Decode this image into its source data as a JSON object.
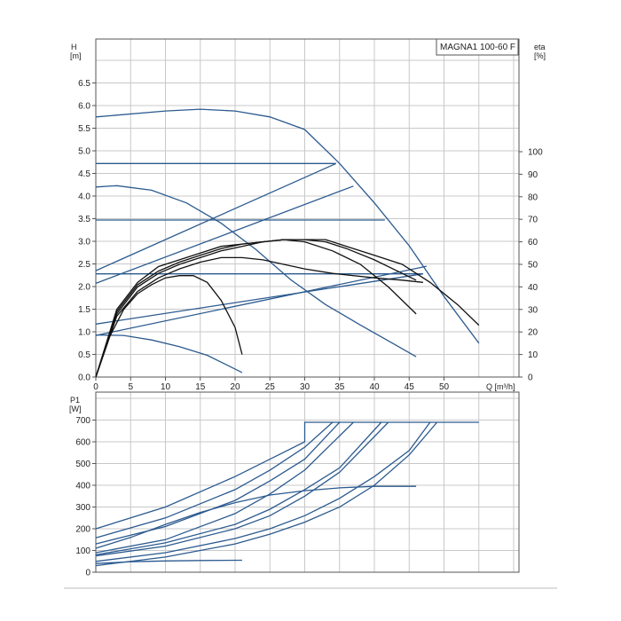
{
  "chart_data": [
    {
      "type": "line",
      "panel": "H / eta vs Q",
      "legend_title": "MAGNA1 100-60 F",
      "left_axis_label": [
        "H",
        "[m]"
      ],
      "right_axis_label": [
        "eta",
        "[%]"
      ],
      "x_axis_label": "Q [m³/h]",
      "xlim": [
        0,
        60
      ],
      "ylim": [
        0,
        6.5
      ],
      "eta_lim": [
        0,
        100
      ],
      "x_ticks": [
        "0",
        "5",
        "10",
        "15",
        "20",
        "25",
        "30",
        "35",
        "40",
        "45",
        "50"
      ],
      "y_ticks": [
        "0.0",
        "0.5",
        "1.0",
        "1.5",
        "2.0",
        "2.5",
        "3.0",
        "3.5",
        "4.0",
        "4.5",
        "5.0",
        "5.5",
        "6.0",
        "6.5"
      ],
      "eta_ticks": [
        "0",
        "10",
        "20",
        "30",
        "40",
        "50",
        "60",
        "70",
        "80",
        "90",
        "100"
      ],
      "grid": true,
      "series": [
        {
          "group": "head",
          "color": "#2b5a8f",
          "points": [
            [
              0,
              5.75
            ],
            [
              10,
              5.88
            ],
            [
              15,
              5.92
            ],
            [
              20,
              5.88
            ],
            [
              25,
              5.75
            ],
            [
              30,
              5.47
            ],
            [
              35,
              4.72
            ],
            [
              40,
              3.85
            ],
            [
              45,
              2.9
            ],
            [
              50,
              1.78
            ],
            [
              55,
              0.75
            ]
          ]
        },
        {
          "group": "head",
          "color": "#2b5a8f",
          "points": [
            [
              0,
              4.72
            ],
            [
              34.5,
              4.72
            ]
          ]
        },
        {
          "group": "head",
          "color": "#2b5a8f",
          "points": [
            [
              0,
              3.47
            ],
            [
              41.5,
              3.47
            ]
          ]
        },
        {
          "group": "head",
          "color": "#2b5a8f",
          "points": [
            [
              0,
              2.28
            ],
            [
              47,
              2.28
            ]
          ]
        },
        {
          "group": "head",
          "color": "#2b5a8f",
          "points": [
            [
              0,
              2.35
            ],
            [
              34.5,
              4.72
            ]
          ]
        },
        {
          "group": "head",
          "color": "#2b5a8f",
          "points": [
            [
              0,
              2.07
            ],
            [
              37,
              4.22
            ]
          ]
        },
        {
          "group": "head",
          "color": "#2b5a8f",
          "points": [
            [
              0,
              1.17
            ],
            [
              47,
              2.28
            ]
          ]
        },
        {
          "group": "head",
          "color": "#2b5a8f",
          "points": [
            [
              0,
              0.92
            ],
            [
              47.5,
              2.45
            ]
          ]
        },
        {
          "group": "head",
          "color": "#2b5a8f",
          "points": [
            [
              0,
              4.2
            ],
            [
              3,
              4.23
            ],
            [
              8,
              4.13
            ],
            [
              13,
              3.85
            ],
            [
              18,
              3.4
            ],
            [
              23,
              2.82
            ],
            [
              28,
              2.15
            ],
            [
              33,
              1.6
            ],
            [
              38,
              1.15
            ],
            [
              42,
              0.8
            ],
            [
              46,
              0.45
            ]
          ]
        },
        {
          "group": "head",
          "color": "#2b5a8f",
          "points": [
            [
              0,
              0.93
            ],
            [
              4,
              0.92
            ],
            [
              8,
              0.82
            ],
            [
              12,
              0.67
            ],
            [
              16,
              0.48
            ],
            [
              21,
              0.1
            ]
          ]
        },
        {
          "group": "eta",
          "color": "#111111",
          "points": [
            [
              0,
              0
            ],
            [
              3,
              30
            ],
            [
              6,
              42
            ],
            [
              9,
              49
            ],
            [
              12,
              52
            ],
            [
              15,
              55
            ],
            [
              18,
              58
            ],
            [
              21,
              59
            ],
            [
              24,
              60
            ],
            [
              27,
              61
            ],
            [
              30,
              61
            ],
            [
              33,
              61
            ],
            [
              36,
              58
            ],
            [
              40,
              54
            ],
            [
              44,
              50
            ],
            [
              48,
              42
            ],
            [
              52,
              32
            ],
            [
              55,
              23
            ]
          ]
        },
        {
          "group": "eta",
          "color": "#111111",
          "points": [
            [
              0,
              0
            ],
            [
              3,
              29
            ],
            [
              6,
              41
            ],
            [
              9,
              47
            ],
            [
              12,
              51
            ],
            [
              15,
              54
            ],
            [
              18,
              57
            ],
            [
              21,
              59
            ],
            [
              24,
              60
            ],
            [
              27,
              61
            ],
            [
              30,
              61
            ],
            [
              33,
              60
            ],
            [
              36,
              57
            ],
            [
              40,
              52
            ],
            [
              44,
              46
            ],
            [
              46,
              43
            ]
          ]
        },
        {
          "group": "eta",
          "color": "#111111",
          "points": [
            [
              0,
              0
            ],
            [
              3,
              28
            ],
            [
              6,
              40
            ],
            [
              9,
              46
            ],
            [
              12,
              50
            ],
            [
              15,
              53
            ],
            [
              18,
              56
            ],
            [
              21,
              58
            ],
            [
              24,
              60
            ],
            [
              27,
              61
            ],
            [
              30,
              60
            ],
            [
              34,
              56
            ],
            [
              38,
              50
            ],
            [
              42,
              40
            ],
            [
              46,
              28
            ]
          ]
        },
        {
          "group": "eta",
          "color": "#111111",
          "points": [
            [
              0,
              0
            ],
            [
              3,
              27
            ],
            [
              6,
              38
            ],
            [
              9,
              44
            ],
            [
              12,
              48
            ],
            [
              15,
              51
            ],
            [
              18,
              53
            ],
            [
              21,
              53
            ],
            [
              24,
              52
            ],
            [
              27,
              50
            ],
            [
              30,
              48
            ],
            [
              34,
              46
            ],
            [
              40,
              44
            ],
            [
              44,
              43
            ],
            [
              47,
              42
            ]
          ]
        },
        {
          "group": "eta",
          "color": "#111111",
          "points": [
            [
              0,
              0
            ],
            [
              2,
              18
            ],
            [
              4,
              30
            ],
            [
              6,
              37
            ],
            [
              8,
              41
            ],
            [
              10,
              44
            ],
            [
              12,
              45
            ],
            [
              14,
              45
            ],
            [
              16,
              42
            ],
            [
              18,
              34
            ],
            [
              20,
              22
            ],
            [
              21,
              10
            ]
          ]
        }
      ]
    },
    {
      "type": "line",
      "panel": "P1 vs Q",
      "left_axis_label": [
        "P1",
        "[W]"
      ],
      "xlim": [
        0,
        60
      ],
      "ylim": [
        0,
        700
      ],
      "y_ticks": [
        "0",
        "100",
        "200",
        "300",
        "400",
        "500",
        "600",
        "700"
      ],
      "grid": true,
      "series": [
        {
          "color": "#2b5a8f",
          "points": [
            [
              0,
              200
            ],
            [
              10,
              300
            ],
            [
              20,
              440
            ],
            [
              25,
              520
            ],
            [
              30,
              600
            ],
            [
              30,
              690
            ],
            [
              55,
              690
            ]
          ]
        },
        {
          "color": "#2b5a8f",
          "points": [
            [
              0,
              158
            ],
            [
              10,
              250
            ],
            [
              20,
              380
            ],
            [
              25,
              470
            ],
            [
              30,
              575
            ],
            [
              34,
              690
            ]
          ]
        },
        {
          "color": "#2b5a8f",
          "points": [
            [
              0,
              130
            ],
            [
              10,
              210
            ],
            [
              20,
              330
            ],
            [
              25,
              420
            ],
            [
              30,
              520
            ],
            [
              35,
              690
            ]
          ]
        },
        {
          "color": "#2b5a8f",
          "points": [
            [
              0,
              90
            ],
            [
              10,
              150
            ],
            [
              20,
              270
            ],
            [
              25,
              360
            ],
            [
              30,
              470
            ],
            [
              37,
              690
            ]
          ]
        },
        {
          "color": "#2b5a8f",
          "points": [
            [
              0,
              75
            ],
            [
              10,
              120
            ],
            [
              20,
              200
            ],
            [
              25,
              260
            ],
            [
              30,
              350
            ],
            [
              35,
              460
            ],
            [
              42,
              690
            ]
          ]
        },
        {
          "color": "#2b5a8f",
          "points": [
            [
              0,
              80
            ],
            [
              10,
              135
            ],
            [
              20,
              220
            ],
            [
              25,
              290
            ],
            [
              30,
              380
            ],
            [
              35,
              480
            ],
            [
              41,
              690
            ]
          ]
        },
        {
          "color": "#2b5a8f",
          "points": [
            [
              0,
              50
            ],
            [
              10,
              90
            ],
            [
              20,
              155
            ],
            [
              25,
              200
            ],
            [
              30,
              260
            ],
            [
              35,
              340
            ],
            [
              40,
              440
            ],
            [
              45,
              560
            ],
            [
              48,
              690
            ]
          ]
        },
        {
          "color": "#2b5a8f",
          "points": [
            [
              0,
              30
            ],
            [
              10,
              70
            ],
            [
              20,
              130
            ],
            [
              25,
              175
            ],
            [
              30,
              230
            ],
            [
              35,
              300
            ],
            [
              40,
              400
            ],
            [
              45,
              540
            ],
            [
              49,
              690
            ]
          ]
        },
        {
          "color": "#2b5a8f",
          "points": [
            [
              0,
              110
            ],
            [
              5,
              160
            ],
            [
              10,
              220
            ],
            [
              15,
              275
            ],
            [
              20,
              320
            ],
            [
              25,
              355
            ],
            [
              30,
              375
            ],
            [
              35,
              388
            ],
            [
              40,
              395
            ],
            [
              46,
              395
            ]
          ]
        },
        {
          "color": "#2b5a8f",
          "points": [
            [
              0,
              40
            ],
            [
              5,
              48
            ],
            [
              10,
              52
            ],
            [
              15,
              54
            ],
            [
              21,
              55
            ]
          ]
        }
      ]
    }
  ]
}
